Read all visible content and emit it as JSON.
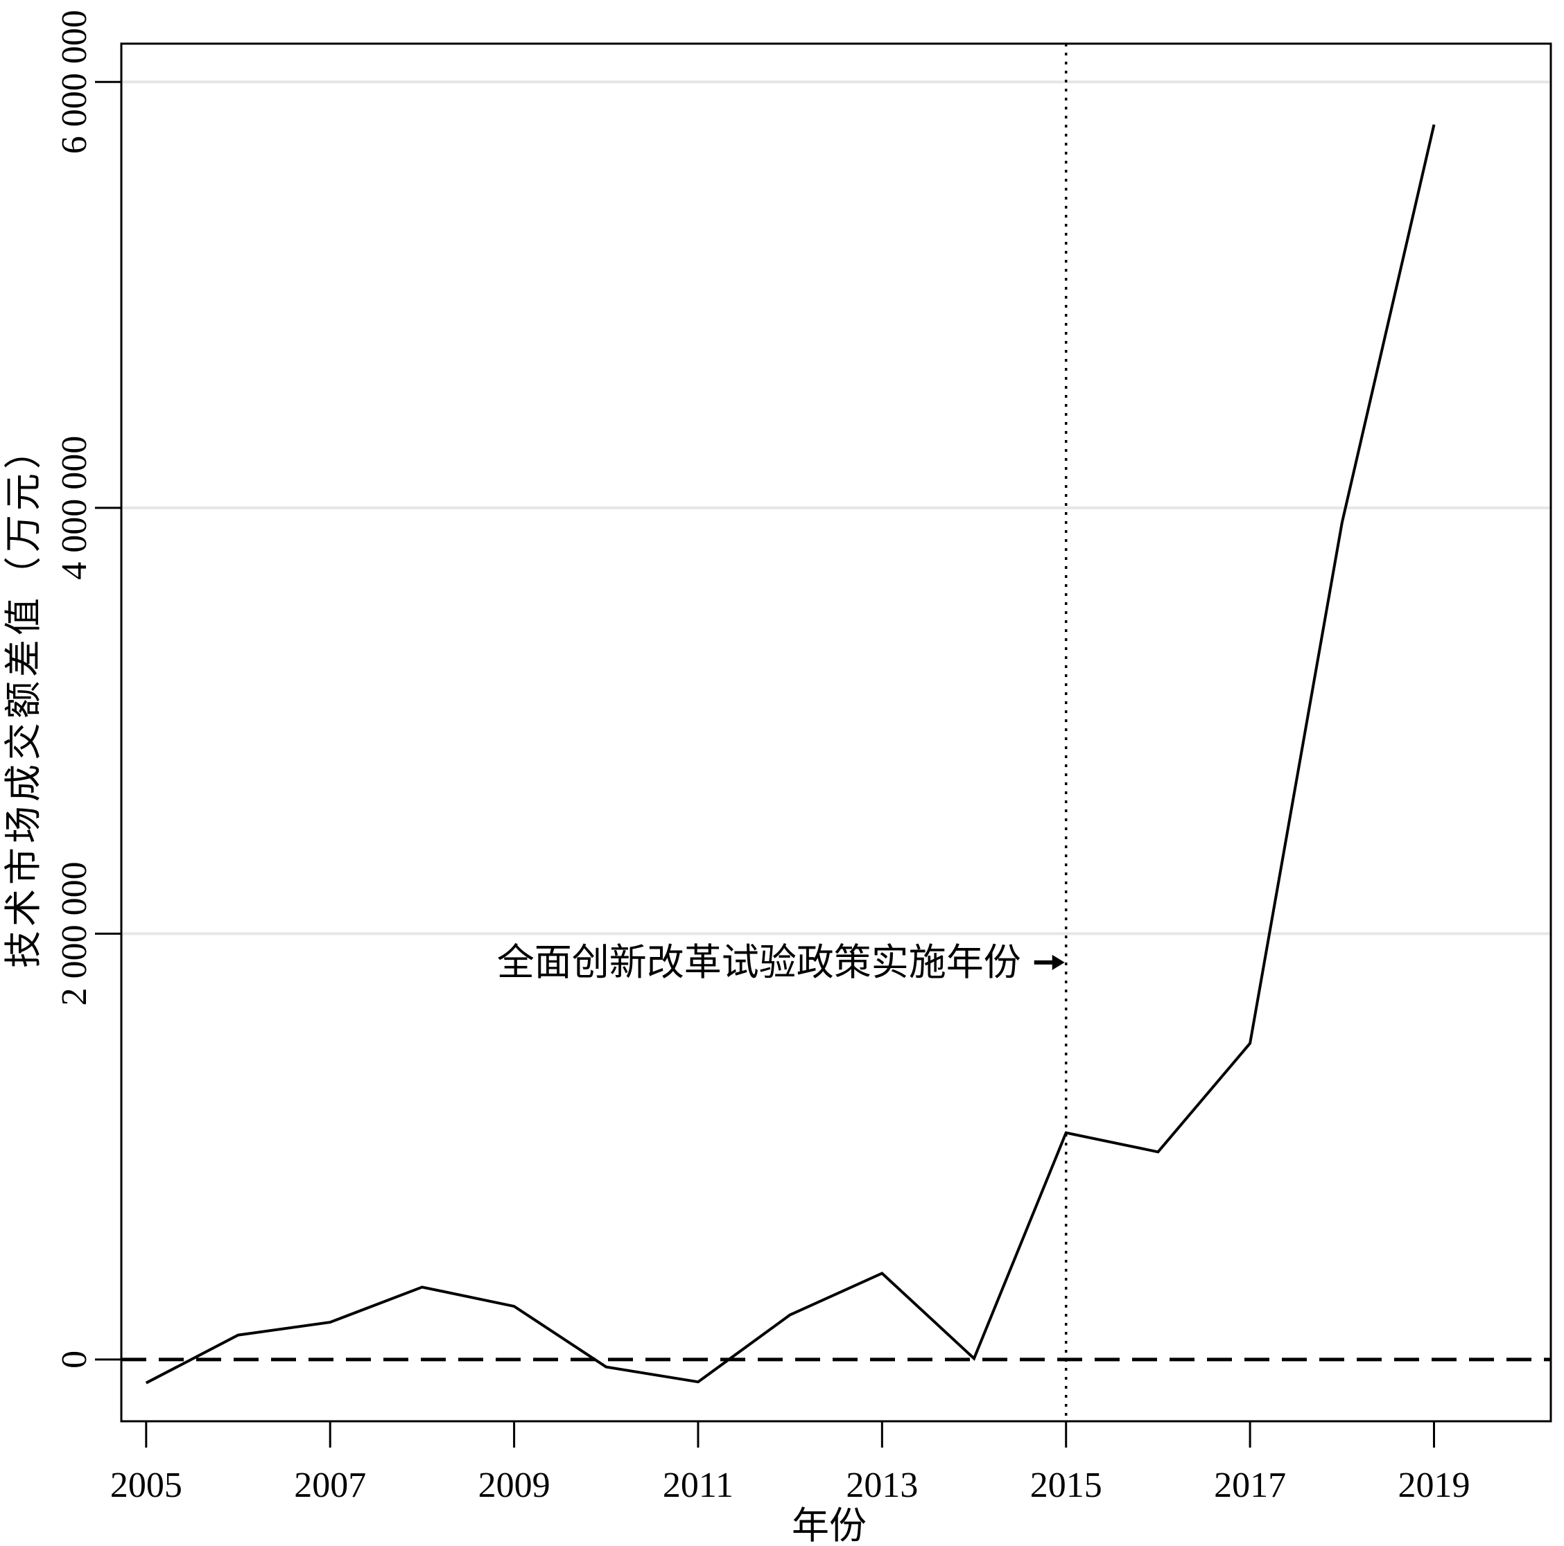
{
  "chart_data": {
    "type": "line",
    "title": "",
    "xlabel": "年份",
    "ylabel": "技术市场成交额差值（万元）",
    "x": [
      2005,
      2006,
      2007,
      2008,
      2009,
      2010,
      2011,
      2012,
      2013,
      2014,
      2015,
      2016,
      2017,
      2018,
      2019
    ],
    "series": [
      {
        "values": [
          -110000,
          115000,
          175000,
          340000,
          250000,
          -35000,
          -105000,
          210000,
          405000,
          5000,
          1065000,
          975000,
          1485000,
          3930000,
          5800000
        ]
      }
    ],
    "xlim": [
      2004.73,
      2020.27
    ],
    "ylim": [
      -290000,
      6180000
    ],
    "xticks": [
      "2005",
      "2007",
      "2009",
      "2011",
      "2013",
      "2015",
      "2017",
      "2019"
    ],
    "yticks": [
      {
        "value": 0,
        "label": "0"
      },
      {
        "value": 2000000,
        "label": "2 000 000"
      },
      {
        "value": 4000000,
        "label": "4 000 000"
      },
      {
        "value": 6000000,
        "label": "6 000 000"
      }
    ],
    "grid": "horizontal",
    "reference_lines": {
      "horizontal_dashed_at": 0,
      "vertical_dotted_at": 2015
    },
    "annotation": {
      "text": "全面创新改革试验政策实施年份",
      "x": 2015,
      "y": 1865000,
      "arrow": "right"
    }
  }
}
